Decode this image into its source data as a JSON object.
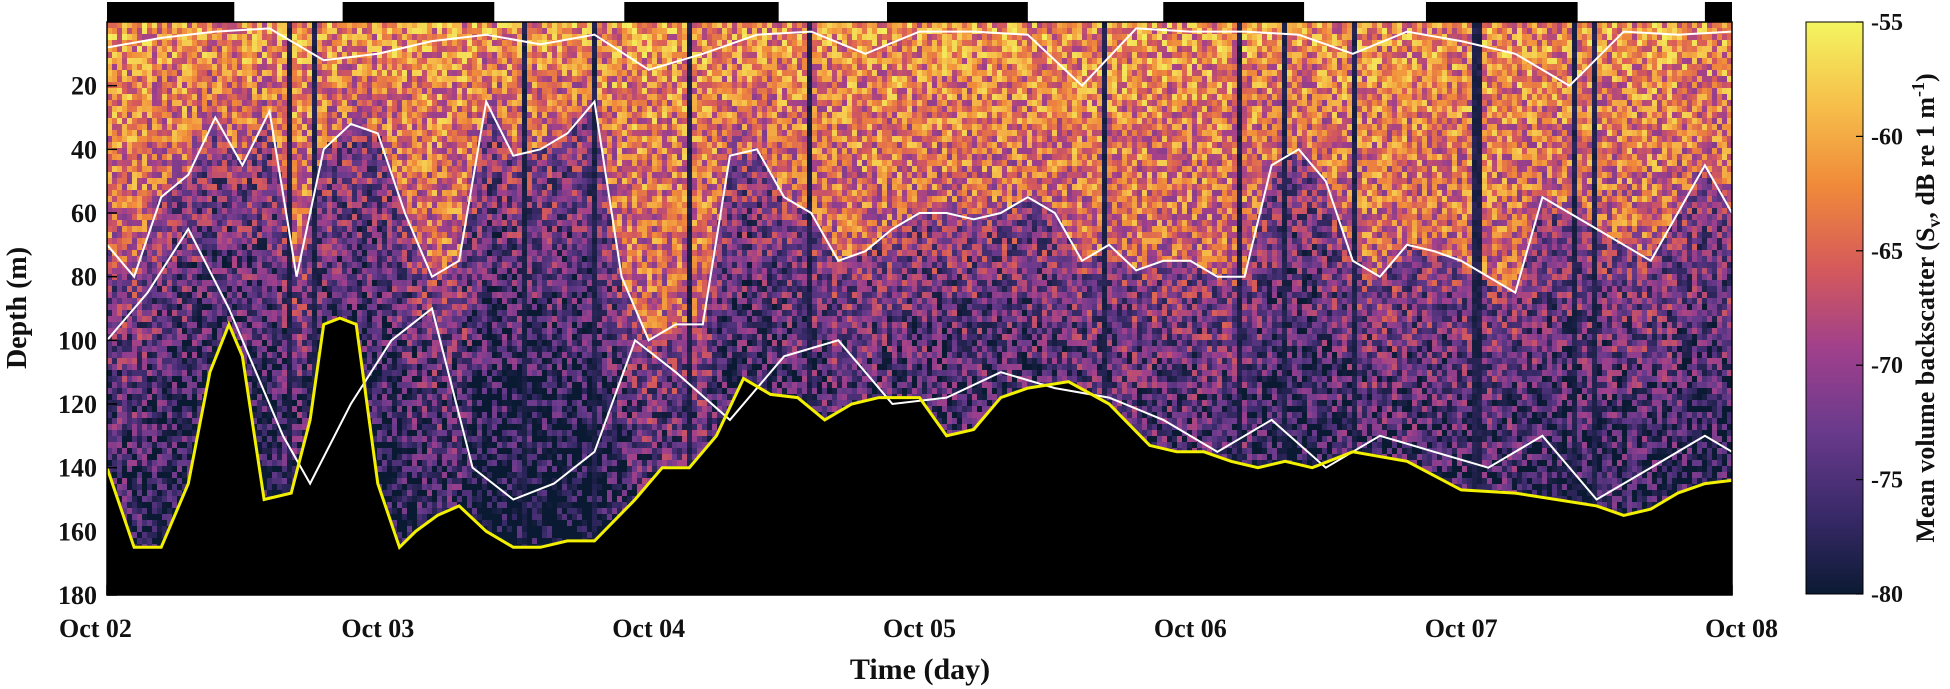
{
  "chart_data": {
    "type": "heatmap",
    "title": "",
    "xlabel": "Time (day)",
    "ylabel": "Depth (m)",
    "x_ticks": [
      "Oct 02",
      "Oct 03",
      "Oct 04",
      "Oct 05",
      "Oct 06",
      "Oct 07",
      "Oct 08"
    ],
    "xlim_days": [
      0,
      6
    ],
    "y_ticks": [
      20,
      40,
      60,
      80,
      100,
      120,
      140,
      160,
      180
    ],
    "ylim": [
      0,
      180
    ],
    "y_reversed": true,
    "colorbar": {
      "label_prefix": "Mean volume backscatter (S",
      "label_sub": "v",
      "label_mid": ", dB re 1 m",
      "label_sup": "-1",
      "label_suffix": ")",
      "min": -80,
      "max": -55,
      "ticks": [
        -55,
        -60,
        -65,
        -70,
        -75,
        -80
      ],
      "colors": [
        "#0b1a33",
        "#3a2a6a",
        "#6a3a8c",
        "#a0408c",
        "#d65a5a",
        "#f08a3a",
        "#f6c04a",
        "#f3f560"
      ]
    },
    "night_periods_days": [
      [
        0.0,
        0.47
      ],
      [
        0.87,
        1.43
      ],
      [
        1.91,
        2.48
      ],
      [
        2.88,
        3.4
      ],
      [
        3.9,
        4.42
      ],
      [
        4.87,
        5.43
      ],
      [
        5.9,
        6.0
      ]
    ],
    "seabed_depth": {
      "x_days": [
        0.0,
        0.1,
        0.2,
        0.3,
        0.38,
        0.45,
        0.5,
        0.58,
        0.68,
        0.75,
        0.8,
        0.86,
        0.92,
        1.0,
        1.08,
        1.14,
        1.22,
        1.3,
        1.4,
        1.5,
        1.6,
        1.7,
        1.8,
        1.95,
        2.05,
        2.15,
        2.25,
        2.35,
        2.45,
        2.55,
        2.65,
        2.75,
        2.85,
        3.0,
        3.1,
        3.2,
        3.3,
        3.4,
        3.55,
        3.7,
        3.85,
        3.95,
        4.05,
        4.15,
        4.25,
        4.35,
        4.45,
        4.6,
        4.8,
        5.0,
        5.2,
        5.35,
        5.5,
        5.6,
        5.7,
        5.8,
        5.9,
        6.0
      ],
      "values": [
        140,
        165,
        165,
        145,
        110,
        95,
        105,
        150,
        148,
        125,
        95,
        93,
        95,
        145,
        165,
        160,
        155,
        152,
        160,
        165,
        165,
        163,
        163,
        150,
        140,
        140,
        130,
        112,
        117,
        118,
        125,
        120,
        118,
        118,
        130,
        128,
        118,
        115,
        113,
        120,
        133,
        135,
        135,
        138,
        140,
        138,
        140,
        135,
        138,
        147,
        148,
        150,
        152,
        155,
        153,
        148,
        145,
        144
      ]
    },
    "layer_lines": [
      {
        "name": "",
        "x_days": [
          0.0,
          0.2,
          0.4,
          0.6,
          0.8,
          1.0,
          1.2,
          1.4,
          1.6,
          1.8,
          2.0,
          2.2,
          2.4,
          2.6,
          2.8,
          3.0,
          3.2,
          3.4,
          3.6,
          3.8,
          4.0,
          4.2,
          4.4,
          4.6,
          4.8,
          5.0,
          5.2,
          5.4,
          5.6,
          5.8,
          6.0
        ],
        "values": [
          8,
          5,
          3,
          2,
          12,
          10,
          6,
          4,
          7,
          4,
          15,
          10,
          4,
          3,
          10,
          3,
          3,
          4,
          20,
          2,
          3,
          3,
          4,
          10,
          3,
          6,
          10,
          20,
          3,
          4,
          3
        ]
      },
      {
        "name": "",
        "x_days": [
          0.0,
          0.1,
          0.2,
          0.3,
          0.4,
          0.5,
          0.6,
          0.7,
          0.8,
          0.9,
          1.0,
          1.1,
          1.2,
          1.3,
          1.4,
          1.5,
          1.6,
          1.7,
          1.8,
          1.9,
          2.0,
          2.1,
          2.2,
          2.3,
          2.4,
          2.5,
          2.6,
          2.7,
          2.8,
          2.9,
          3.0,
          3.1,
          3.2,
          3.3,
          3.4,
          3.5,
          3.6,
          3.7,
          3.8,
          3.9,
          4.0,
          4.1,
          4.2,
          4.3,
          4.4,
          4.5,
          4.6,
          4.7,
          4.8,
          4.9,
          5.0,
          5.1,
          5.2,
          5.3,
          5.4,
          5.5,
          5.6,
          5.7,
          5.8,
          5.9,
          6.0
        ],
        "values": [
          70,
          80,
          55,
          48,
          30,
          45,
          28,
          80,
          40,
          32,
          35,
          60,
          80,
          75,
          25,
          42,
          40,
          35,
          25,
          80,
          100,
          95,
          95,
          42,
          40,
          55,
          60,
          75,
          72,
          65,
          60,
          60,
          62,
          60,
          55,
          60,
          75,
          70,
          78,
          75,
          75,
          80,
          80,
          45,
          40,
          50,
          75,
          80,
          70,
          72,
          75,
          80,
          85,
          55,
          60,
          65,
          70,
          75,
          60,
          45,
          60
        ]
      },
      {
        "name": "",
        "x_days": [
          0.0,
          0.15,
          0.3,
          0.45,
          0.55,
          0.65,
          0.75,
          0.9,
          1.05,
          1.2,
          1.35,
          1.5,
          1.65,
          1.8,
          1.95,
          2.1,
          2.3,
          2.5,
          2.7,
          2.9,
          3.1,
          3.3,
          3.5,
          3.7,
          3.9,
          4.1,
          4.3,
          4.5,
          4.7,
          4.9,
          5.1,
          5.3,
          5.5,
          5.7,
          5.9,
          6.0
        ],
        "values": [
          100,
          85,
          65,
          90,
          110,
          130,
          145,
          120,
          100,
          90,
          140,
          150,
          145,
          135,
          100,
          110,
          125,
          105,
          100,
          120,
          118,
          110,
          115,
          118,
          125,
          135,
          125,
          140,
          130,
          135,
          140,
          130,
          150,
          140,
          130,
          135
        ]
      }
    ]
  }
}
